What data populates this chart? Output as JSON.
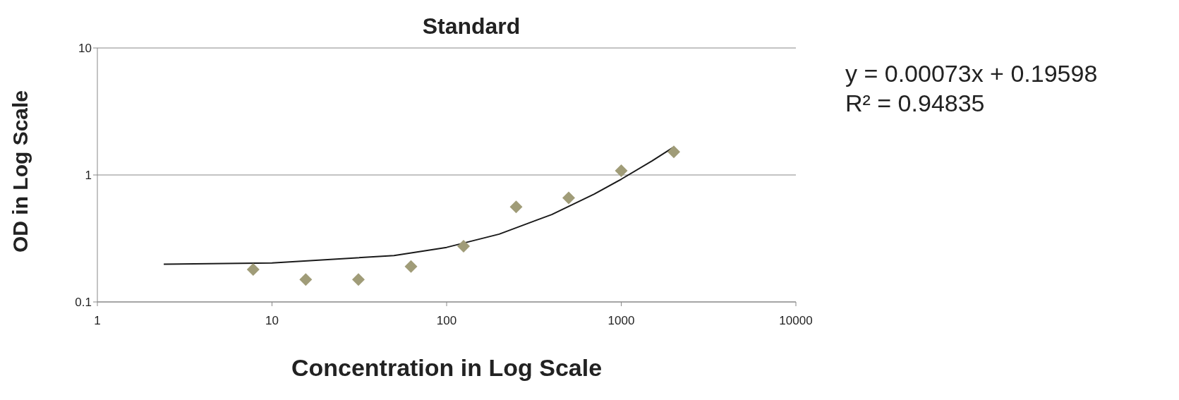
{
  "chart_data": {
    "type": "scatter",
    "title": "Standard",
    "xlabel": "Concentration in Log Scale",
    "ylabel": "OD in Log Scale",
    "log": "xy",
    "xlim": [
      1,
      10000
    ],
    "xticks": [
      1,
      10,
      100,
      1000,
      10000
    ],
    "ylim": [
      0.1,
      10
    ],
    "yticks": [
      0.1,
      1,
      10
    ],
    "grid": "y",
    "legend": false,
    "marker": "diamond",
    "annotations": [
      "y = 0.00073x + 0.19598",
      "R² = 0.94835"
    ],
    "series": [
      {
        "color": "#a09c78",
        "x": [
          7.8,
          15.6,
          31.25,
          62.5,
          125,
          250,
          500,
          1000,
          2000
        ],
        "values": [
          0.18,
          0.15,
          0.15,
          0.19,
          0.275,
          0.56,
          0.66,
          1.08,
          1.52
        ]
      },
      {
        "type": "line",
        "marker": "none",
        "color": "#1a1a1a",
        "x": [
          2.4,
          10,
          50,
          100,
          200,
          400,
          700,
          1000,
          1500,
          2000
        ],
        "values": [
          0.198,
          0.203,
          0.232,
          0.269,
          0.342,
          0.488,
          0.707,
          0.926,
          1.29,
          1.66
        ]
      }
    ]
  }
}
